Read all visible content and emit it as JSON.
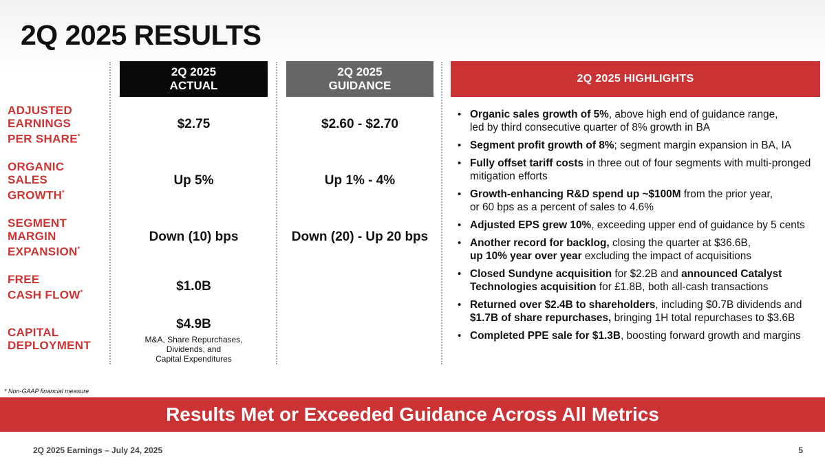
{
  "title": "2Q 2025 RESULTS",
  "columns": {
    "actual": {
      "line1": "2Q 2025",
      "line2": "ACTUAL",
      "bg": "#0a0a0a"
    },
    "guidance": {
      "line1": "2Q 2025",
      "line2": "GUIDANCE",
      "bg": "#666666"
    },
    "highlights": {
      "label": "2Q 2025 HIGHLIGHTS",
      "bg": "#cb3234"
    }
  },
  "metrics": [
    {
      "label_lines": [
        "ADJUSTED",
        "EARNINGS",
        "PER SHARE"
      ],
      "asterisk": "*",
      "actual": "$2.75",
      "guidance": "$2.60 - $2.70"
    },
    {
      "label_lines": [
        "ORGANIC",
        "SALES",
        "GROWTH"
      ],
      "asterisk": "*",
      "actual": "Up 5%",
      "guidance": "Up 1% - 4%"
    },
    {
      "label_lines": [
        "SEGMENT",
        "MARGIN",
        "EXPANSION"
      ],
      "asterisk": "*",
      "actual": "Down (10) bps",
      "guidance": "Down (20) - Up 20 bps"
    },
    {
      "label_lines": [
        "FREE",
        "CASH FLOW"
      ],
      "asterisk": "*",
      "actual": "$1.0B",
      "guidance": ""
    },
    {
      "label_lines": [
        "CAPITAL",
        "DEPLOYMENT"
      ],
      "asterisk": "",
      "actual": "$4.9B",
      "actual_sub": [
        "M&A, Share Repurchases,",
        "Dividends, and",
        "Capital Expenditures"
      ],
      "guidance": ""
    }
  ],
  "highlights": [
    {
      "bold": "Organic sales growth of 5%",
      "text": ", above high end of guidance range,",
      "line2": "led by third consecutive quarter of 8% growth in BA"
    },
    {
      "bold": "Segment profit growth of 8%",
      "text": "; segment margin expansion in BA, IA"
    },
    {
      "bold": "Fully offset tariff costs",
      "text": " in three out of four segments with multi-pronged",
      "line2": "mitigation efforts"
    },
    {
      "bold": "Growth-enhancing R&D spend up ~$100M",
      "text": " from the prior year,",
      "line2": "or 60 bps as a percent of sales to 4.6%"
    },
    {
      "bold": "Adjusted EPS grew 10%",
      "text": ", exceeding upper end of guidance by 5 cents"
    },
    {
      "bold": "Another record for backlog,",
      "text": " closing the quarter at $36.6B,",
      "line2_bold": "up 10% year over year",
      "line2": " excluding the impact of acquisitions"
    },
    {
      "bold": "Closed Sundyne acquisition",
      "text": " for $2.2B and ",
      "bold2": "announced Catalyst",
      "line2_bold": "Technologies acquisition",
      "line2": " for £1.8B, both all-cash transactions"
    },
    {
      "bold": "Returned over $2.4B to shareholders",
      "text": ", including $0.7B dividends and",
      "line2_bold": "$1.7B of share repurchases,",
      "line2": " bringing 1H total repurchases to $3.6B"
    },
    {
      "bold": "Completed PPE sale for $1.3B",
      "text": ", boosting forward growth and margins"
    }
  ],
  "footnote": "* Non-GAAP financial measure",
  "banner": "Results Met or Exceeded Guidance Across All Metrics",
  "footer": {
    "left": "2Q 2025 Earnings – July 24, 2025",
    "page": "5"
  }
}
